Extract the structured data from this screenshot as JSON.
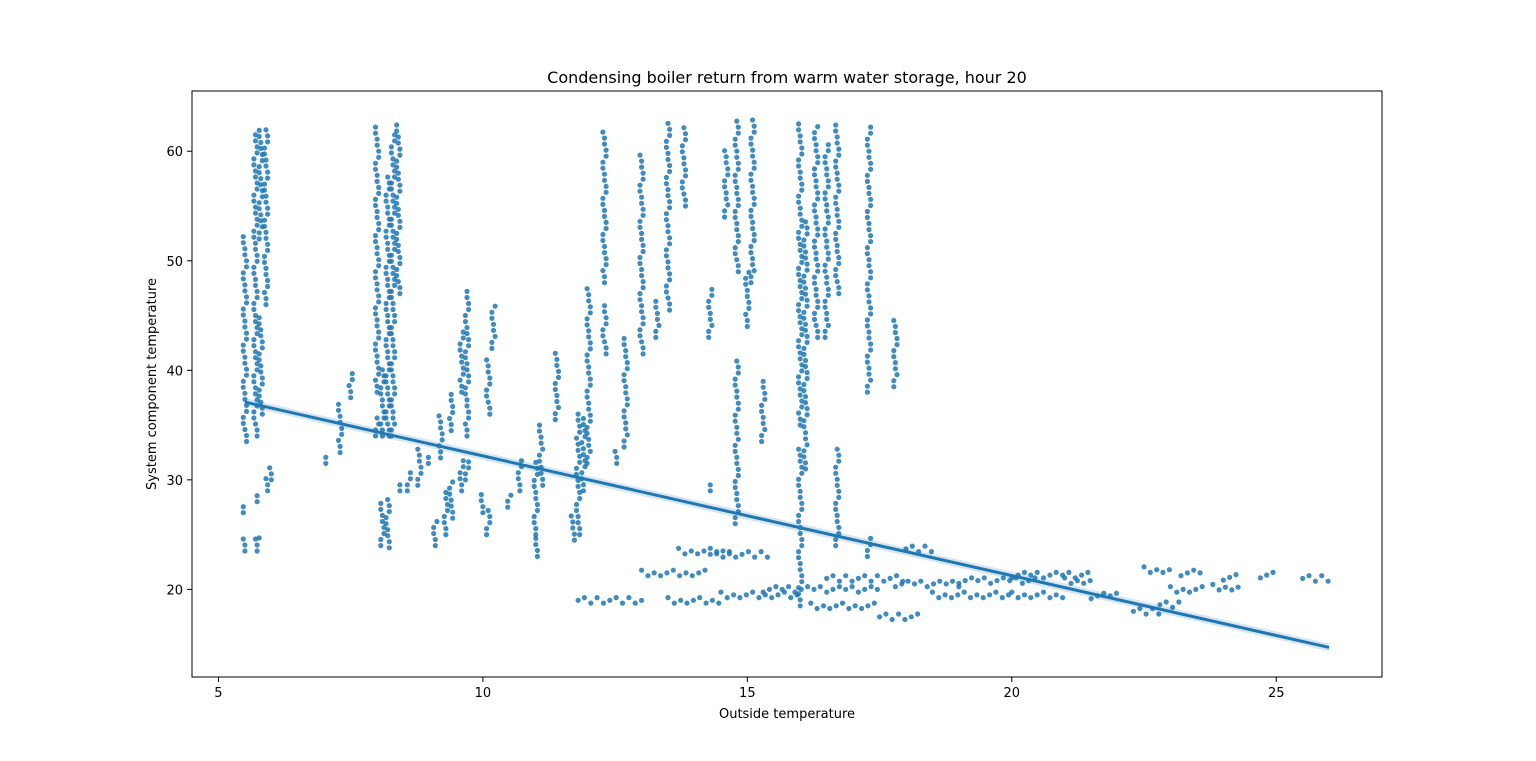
{
  "chart_data": {
    "type": "scatter",
    "title": "Condensing boiler return from warm water storage, hour 20",
    "xlabel": "Outside temperature",
    "ylabel": "System component temperature",
    "xlim": [
      4.5,
      27.0
    ],
    "ylim": [
      12.0,
      65.5
    ],
    "xticks": [
      5,
      10,
      15,
      20,
      25
    ],
    "yticks": [
      20,
      30,
      40,
      50,
      60
    ],
    "grid": false,
    "legend": "none",
    "color": "#1f77b4",
    "regression_line": {
      "x": [
        5.5,
        26.0
      ],
      "y": [
        37.1,
        14.7
      ]
    },
    "vertical_clusters": [
      {
        "x": 5.5,
        "y_ranges": [
          [
            23.5,
            24.7
          ],
          [
            27.0,
            27.6
          ],
          [
            33.5,
            52.7
          ]
        ]
      },
      {
        "x": 5.7,
        "y_ranges": [
          [
            23.5,
            25.0
          ],
          [
            28.0,
            28.6
          ],
          [
            34.0,
            62.0
          ]
        ]
      },
      {
        "x": 5.8,
        "y_ranges": [
          [
            24.7,
            25.0
          ],
          [
            36.0,
            45.0
          ],
          [
            52.0,
            62.0
          ]
        ]
      },
      {
        "x": 5.9,
        "y_ranges": [
          [
            29.0,
            30.5
          ],
          [
            46.0,
            62.0
          ]
        ]
      },
      {
        "x": 6.0,
        "y_ranges": [
          [
            30.0,
            31.5
          ]
        ]
      },
      {
        "x": 7.0,
        "y_ranges": [
          [
            31.5,
            32.5
          ]
        ]
      },
      {
        "x": 7.3,
        "y_ranges": [
          [
            32.5,
            37.0
          ]
        ]
      },
      {
        "x": 7.5,
        "y_ranges": [
          [
            37.5,
            40.0
          ]
        ]
      },
      {
        "x": 8.0,
        "y_ranges": [
          [
            34.0,
            36.0
          ],
          [
            38.0,
            62.5
          ]
        ]
      },
      {
        "x": 8.1,
        "y_ranges": [
          [
            24.0,
            28.0
          ],
          [
            34.0,
            40.5
          ]
        ]
      },
      {
        "x": 8.2,
        "y_ranges": [
          [
            23.8,
            28.5
          ],
          [
            34.0,
            58.0
          ]
        ]
      },
      {
        "x": 8.3,
        "y_ranges": [
          [
            34.0,
            62.0
          ]
        ]
      },
      {
        "x": 8.4,
        "y_ranges": [
          [
            29.0,
            30.0
          ],
          [
            47.0,
            62.5
          ]
        ]
      },
      {
        "x": 8.6,
        "y_ranges": [
          [
            29.0,
            31.0
          ]
        ]
      },
      {
        "x": 8.8,
        "y_ranges": [
          [
            29.5,
            33.0
          ]
        ]
      },
      {
        "x": 9.0,
        "y_ranges": [
          [
            31.5,
            32.5
          ]
        ]
      },
      {
        "x": 9.1,
        "y_ranges": [
          [
            24.0,
            26.5
          ]
        ]
      },
      {
        "x": 9.2,
        "y_ranges": [
          [
            32.0,
            36.0
          ]
        ]
      },
      {
        "x": 9.3,
        "y_ranges": [
          [
            25.0,
            29.0
          ]
        ]
      },
      {
        "x": 9.4,
        "y_ranges": [
          [
            26.5,
            30.0
          ],
          [
            34.5,
            38.0
          ]
        ]
      },
      {
        "x": 9.6,
        "y_ranges": [
          [
            29.0,
            32.0
          ],
          [
            38.0,
            44.0
          ]
        ]
      },
      {
        "x": 9.7,
        "y_ranges": [
          [
            30.0,
            32.0
          ],
          [
            34.0,
            47.5
          ]
        ]
      },
      {
        "x": 10.0,
        "y_ranges": [
          [
            27.0,
            29.0
          ]
        ]
      },
      {
        "x": 10.1,
        "y_ranges": [
          [
            25.0,
            27.5
          ],
          [
            36.0,
            41.0
          ]
        ]
      },
      {
        "x": 10.2,
        "y_ranges": [
          [
            42.0,
            46.0
          ]
        ]
      },
      {
        "x": 10.5,
        "y_ranges": [
          [
            27.5,
            29.0
          ]
        ]
      },
      {
        "x": 10.7,
        "y_ranges": [
          [
            29.0,
            32.0
          ]
        ]
      },
      {
        "x": 11.0,
        "y_ranges": [
          [
            23.0,
            25.0
          ],
          [
            25.0,
            32.0
          ]
        ]
      },
      {
        "x": 11.1,
        "y_ranges": [
          [
            29.5,
            35.0
          ]
        ]
      },
      {
        "x": 11.4,
        "y_ranges": [
          [
            35.5,
            42.0
          ]
        ]
      },
      {
        "x": 11.7,
        "y_ranges": [
          [
            24.5,
            27.0
          ]
        ]
      },
      {
        "x": 11.8,
        "y_ranges": [
          [
            25.0,
            36.0
          ]
        ]
      },
      {
        "x": 11.9,
        "y_ranges": [
          [
            29.0,
            36.0
          ]
        ]
      },
      {
        "x": 12.0,
        "y_ranges": [
          [
            31.5,
            47.5
          ]
        ]
      },
      {
        "x": 12.3,
        "y_ranges": [
          [
            41.5,
            46.0
          ],
          [
            48.0,
            62.0
          ]
        ]
      },
      {
        "x": 12.5,
        "y_ranges": [
          [
            31.5,
            33.0
          ]
        ]
      },
      {
        "x": 12.7,
        "y_ranges": [
          [
            33.0,
            43.0
          ]
        ]
      },
      {
        "x": 13.0,
        "y_ranges": [
          [
            41.5,
            60.0
          ]
        ]
      },
      {
        "x": 13.3,
        "y_ranges": [
          [
            43.0,
            46.5
          ]
        ]
      },
      {
        "x": 13.5,
        "y_ranges": [
          [
            45.5,
            63.0
          ]
        ]
      },
      {
        "x": 13.8,
        "y_ranges": [
          [
            55.0,
            62.5
          ]
        ]
      },
      {
        "x": 14.3,
        "y_ranges": [
          [
            29.0,
            30.0
          ],
          [
            43.0,
            47.5
          ]
        ]
      },
      {
        "x": 14.6,
        "y_ranges": [
          [
            54.0,
            60.5
          ]
        ]
      },
      {
        "x": 14.8,
        "y_ranges": [
          [
            26.0,
            41.0
          ],
          [
            49.0,
            63.0
          ]
        ]
      },
      {
        "x": 15.0,
        "y_ranges": [
          [
            44.0,
            49.0
          ]
        ]
      },
      {
        "x": 15.1,
        "y_ranges": [
          [
            48.0,
            63.0
          ]
        ]
      },
      {
        "x": 15.3,
        "y_ranges": [
          [
            33.5,
            39.5
          ]
        ]
      },
      {
        "x": 16.0,
        "y_ranges": [
          [
            18.5,
            33.0
          ],
          [
            35.0,
            63.0
          ]
        ]
      },
      {
        "x": 16.1,
        "y_ranges": [
          [
            31.0,
            54.0
          ]
        ]
      },
      {
        "x": 16.3,
        "y_ranges": [
          [
            43.0,
            62.5
          ]
        ]
      },
      {
        "x": 16.5,
        "y_ranges": [
          [
            43.0,
            61.0
          ]
        ]
      },
      {
        "x": 16.7,
        "y_ranges": [
          [
            24.0,
            33.0
          ],
          [
            47.0,
            62.5
          ]
        ]
      },
      {
        "x": 17.3,
        "y_ranges": [
          [
            23.0,
            25.0
          ],
          [
            38.0,
            62.5
          ]
        ]
      },
      {
        "x": 17.8,
        "y_ranges": [
          [
            38.5,
            45.0
          ]
        ]
      }
    ],
    "horizontal_clusters": [
      {
        "x_range": [
          11.8,
          13.0
        ],
        "y": 19.0
      },
      {
        "x_range": [
          13.5,
          14.5
        ],
        "y": 19.0
      },
      {
        "x_range": [
          13.0,
          14.2
        ],
        "y": 21.5
      },
      {
        "x_range": [
          13.7,
          14.7
        ],
        "y": 23.5
      },
      {
        "x_range": [
          14.3,
          15.4
        ],
        "y": 23.2
      },
      {
        "x_range": [
          14.5,
          16.0
        ],
        "y": 19.5
      },
      {
        "x_range": [
          15.3,
          17.5
        ],
        "y": 20.0
      },
      {
        "x_range": [
          16.2,
          17.5
        ],
        "y": 18.5
      },
      {
        "x_range": [
          16.5,
          18.0
        ],
        "y": 21.0
      },
      {
        "x_range": [
          17.5,
          18.3
        ],
        "y": 17.5
      },
      {
        "x_range": [
          17.8,
          19.0
        ],
        "y": 20.5
      },
      {
        "x_range": [
          18.0,
          18.5
        ],
        "y": 23.7
      },
      {
        "x_range": [
          18.5,
          20.0
        ],
        "y": 19.5
      },
      {
        "x_range": [
          19.0,
          20.5
        ],
        "y": 20.8
      },
      {
        "x_range": [
          20.0,
          21.5
        ],
        "y": 21.3
      },
      {
        "x_range": [
          20.0,
          21.0
        ],
        "y": 19.5
      },
      {
        "x_range": [
          21.0,
          21.5
        ],
        "y": 20.8
      },
      {
        "x_range": [
          21.5,
          22.0
        ],
        "y": 19.4
      },
      {
        "x_range": [
          22.3,
          22.8
        ],
        "y": 18.0
      },
      {
        "x_range": [
          22.5,
          23.0
        ],
        "y": 21.8
      },
      {
        "x_range": [
          22.8,
          23.2
        ],
        "y": 18.6
      },
      {
        "x_range": [
          23.0,
          23.6
        ],
        "y": 20.0
      },
      {
        "x_range": [
          23.2,
          23.6
        ],
        "y": 21.5
      },
      {
        "x_range": [
          23.8,
          24.3
        ],
        "y": 20.2
      },
      {
        "x_range": [
          24.0,
          24.3
        ],
        "y": 21.1
      },
      {
        "x_range": [
          24.7,
          25.0
        ],
        "y": 21.3
      },
      {
        "x_range": [
          25.5,
          26.0
        ],
        "y": 21.0
      }
    ]
  }
}
